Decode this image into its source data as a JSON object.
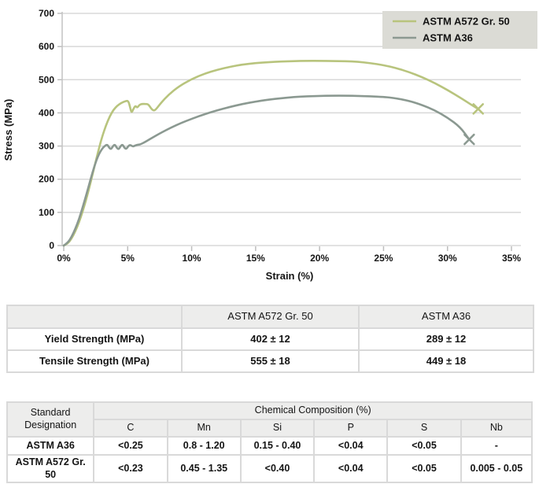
{
  "chart_data": {
    "type": "line",
    "title": "",
    "xlabel": "Strain (%)",
    "ylabel": "Stress (MPa)",
    "xlim": [
      0,
      35
    ],
    "ylim": [
      0,
      700
    ],
    "xticks": [
      0,
      5,
      10,
      15,
      20,
      25,
      30,
      35
    ],
    "xtick_labels": [
      "0%",
      "5%",
      "10%",
      "15%",
      "20%",
      "25%",
      "30%",
      "35%"
    ],
    "yticks": [
      0,
      100,
      200,
      300,
      400,
      500,
      600,
      700
    ],
    "grid": "horizontal",
    "grid_color": "#d8d8d8",
    "legend_position": "top-right",
    "legend_bg": "#dbdbd5",
    "end_marker": "x",
    "series": [
      {
        "name": "ASTM A572 Gr. 50",
        "color": "#b8c47d",
        "points": [
          [
            0,
            0
          ],
          [
            0.3,
            5
          ],
          [
            0.6,
            20
          ],
          [
            0.9,
            42
          ],
          [
            1.2,
            70
          ],
          [
            1.5,
            105
          ],
          [
            1.8,
            145
          ],
          [
            2.1,
            190
          ],
          [
            2.4,
            238
          ],
          [
            2.7,
            285
          ],
          [
            3.0,
            328
          ],
          [
            3.3,
            362
          ],
          [
            3.6,
            390
          ],
          [
            3.9,
            410
          ],
          [
            4.2,
            422
          ],
          [
            4.5,
            430
          ],
          [
            4.8,
            435
          ],
          [
            5.05,
            437
          ],
          [
            5.2,
            415
          ],
          [
            5.3,
            400
          ],
          [
            5.45,
            412
          ],
          [
            5.6,
            422
          ],
          [
            5.75,
            415
          ],
          [
            5.9,
            424
          ],
          [
            6.1,
            427
          ],
          [
            6.4,
            427
          ],
          [
            6.6,
            426
          ],
          [
            6.75,
            418
          ],
          [
            6.9,
            410
          ],
          [
            7.05,
            407
          ],
          [
            7.2,
            410
          ],
          [
            7.6,
            430
          ],
          [
            8.2,
            455
          ],
          [
            9,
            480
          ],
          [
            10,
            502
          ],
          [
            11,
            518
          ],
          [
            12,
            530
          ],
          [
            13,
            539
          ],
          [
            14,
            546
          ],
          [
            15,
            550
          ],
          [
            16,
            553
          ],
          [
            17,
            555
          ],
          [
            18,
            556
          ],
          [
            19,
            557
          ],
          [
            20,
            557
          ],
          [
            21,
            556
          ],
          [
            22,
            556
          ],
          [
            23,
            554
          ],
          [
            24,
            550
          ],
          [
            25,
            544
          ],
          [
            26,
            535
          ],
          [
            27,
            523
          ],
          [
            28,
            508
          ],
          [
            29,
            490
          ],
          [
            30,
            469
          ],
          [
            31,
            446
          ],
          [
            32,
            421
          ],
          [
            32.4,
            412
          ]
        ]
      },
      {
        "name": "ASTM A36",
        "color": "#8b9991",
        "points": [
          [
            0,
            0
          ],
          [
            0.3,
            8
          ],
          [
            0.6,
            25
          ],
          [
            0.9,
            50
          ],
          [
            1.2,
            80
          ],
          [
            1.5,
            118
          ],
          [
            1.8,
            158
          ],
          [
            2.1,
            200
          ],
          [
            2.4,
            240
          ],
          [
            2.7,
            272
          ],
          [
            3.0,
            292
          ],
          [
            3.2,
            300
          ],
          [
            3.4,
            305
          ],
          [
            3.55,
            295
          ],
          [
            3.7,
            290
          ],
          [
            3.85,
            300
          ],
          [
            4.0,
            305
          ],
          [
            4.15,
            294
          ],
          [
            4.3,
            290
          ],
          [
            4.45,
            300
          ],
          [
            4.6,
            305
          ],
          [
            4.75,
            294
          ],
          [
            4.9,
            291
          ],
          [
            5.05,
            300
          ],
          [
            5.2,
            304
          ],
          [
            5.4,
            298
          ],
          [
            5.6,
            302
          ],
          [
            5.8,
            304
          ],
          [
            6.0,
            305
          ],
          [
            6.4,
            313
          ],
          [
            7,
            327
          ],
          [
            7.6,
            340
          ],
          [
            8.4,
            356
          ],
          [
            9.2,
            370
          ],
          [
            10,
            382
          ],
          [
            11,
            396
          ],
          [
            12,
            408
          ],
          [
            13,
            418
          ],
          [
            14,
            427
          ],
          [
            15,
            434
          ],
          [
            16,
            440
          ],
          [
            17,
            444
          ],
          [
            18,
            448
          ],
          [
            19,
            450
          ],
          [
            20,
            451
          ],
          [
            21,
            452
          ],
          [
            22,
            452
          ],
          [
            23,
            451
          ],
          [
            24,
            450
          ],
          [
            25,
            448
          ],
          [
            25.6,
            446
          ],
          [
            26.4,
            441
          ],
          [
            27.2,
            434
          ],
          [
            28,
            424
          ],
          [
            29,
            408
          ],
          [
            30,
            386
          ],
          [
            31,
            357
          ],
          [
            31.7,
            320
          ]
        ]
      }
    ]
  },
  "strength_table": {
    "columns": [
      "",
      "ASTM A572 Gr. 50",
      "ASTM A36"
    ],
    "rows": [
      [
        "Yield Strength (MPa)",
        "402 ± 12",
        "289 ± 12"
      ],
      [
        "Tensile Strength (MPa)",
        "555 ± 18",
        "449 ± 18"
      ]
    ]
  },
  "composition_table": {
    "corner_header": "Standard Designation",
    "group_header": "Chemical Composition (%)",
    "columns": [
      "C",
      "Mn",
      "Si",
      "P",
      "S",
      "Nb"
    ],
    "rows": [
      {
        "label": "ASTM A36",
        "values": [
          "<0.25",
          "0.8 - 1.20",
          "0.15 - 0.40",
          "<0.04",
          "<0.05",
          "-"
        ]
      },
      {
        "label": "ASTM A572 Gr. 50",
        "values": [
          "<0.23",
          "0.45 - 1.35",
          "<0.40",
          "<0.04",
          "<0.05",
          "0.005 - 0.05"
        ]
      }
    ]
  }
}
